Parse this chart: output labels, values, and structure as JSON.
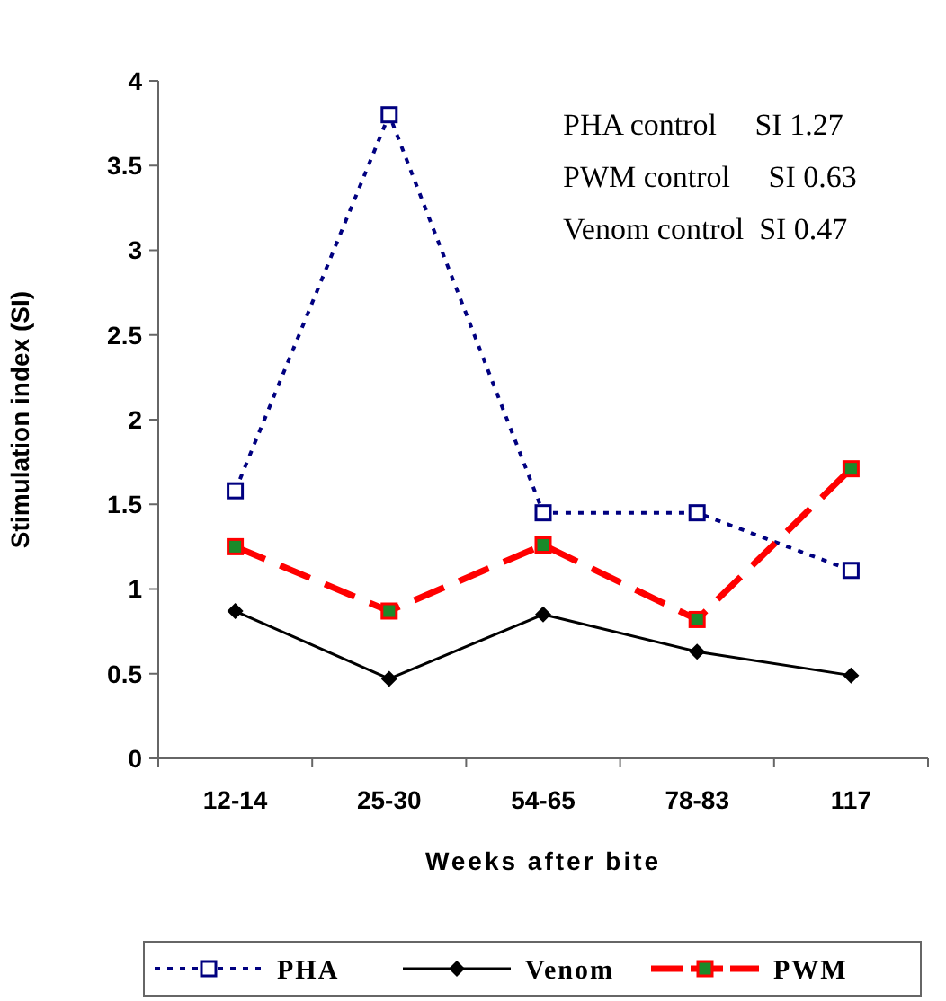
{
  "chart_data": {
    "type": "line",
    "xlabel": "Weeks after bite",
    "ylabel": "Stimulation index (SI)",
    "categories": [
      "12-14",
      "25-30",
      "54-65",
      "78-83",
      "117"
    ],
    "series": [
      {
        "name": "PHA",
        "color": "#000080",
        "values": [
          1.58,
          3.8,
          1.45,
          1.45,
          1.11
        ],
        "marker": "square",
        "line_style": "dotted"
      },
      {
        "name": "Venom",
        "color": "#000000",
        "values": [
          0.87,
          0.47,
          0.85,
          0.63,
          0.49
        ],
        "marker": "diamond",
        "line_style": "solid"
      },
      {
        "name": "PWM",
        "color": "#ff0000",
        "values": [
          1.25,
          0.87,
          1.26,
          0.82,
          1.71
        ],
        "marker": "square",
        "line_style": "dashed"
      }
    ],
    "ylim": [
      0,
      4
    ],
    "yticks": [
      0,
      0.5,
      1,
      1.5,
      2,
      2.5,
      3,
      3.5,
      4
    ],
    "grid": false,
    "legend": "bottom",
    "annotations": [
      "PHA control     SI 1.27",
      "PWM control     SI 0.63",
      "Venom control  SI 0.47"
    ]
  }
}
